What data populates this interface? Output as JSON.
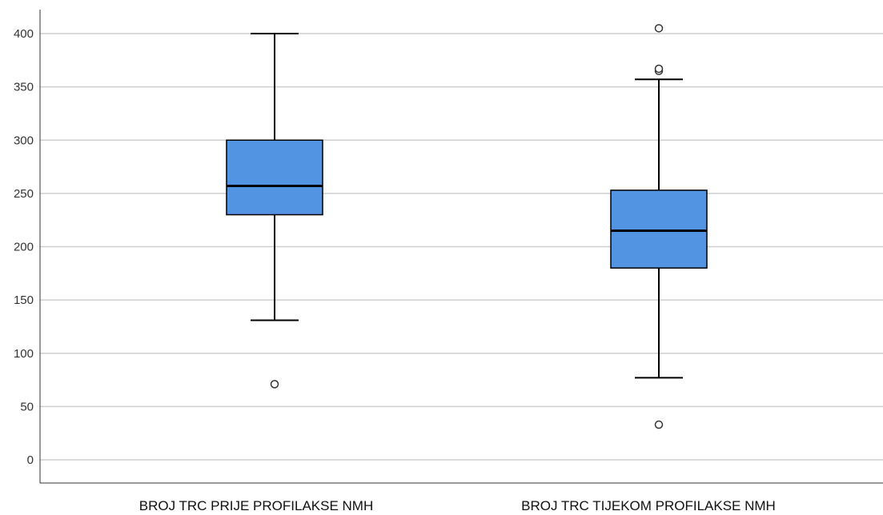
{
  "chart_data": {
    "type": "boxplot",
    "title": "",
    "xlabel": "",
    "ylabel": "",
    "ylim": [
      0,
      400
    ],
    "yticks": [
      0,
      50,
      100,
      150,
      200,
      250,
      300,
      350,
      400
    ],
    "grid": "horizontal",
    "legend": "none",
    "box_color": "#5294e2",
    "categories": [
      "BROJ TRC PRIJE PROFILAKSE NMH",
      "BROJ TRC TIJEKOM PROFILAKSE NMH"
    ],
    "boxes": [
      {
        "category": "BROJ TRC PRIJE PROFILAKSE NMH",
        "whisker_low": 131,
        "q1": 230,
        "median": 257,
        "q3": 300,
        "whisker_high": 400,
        "outliers": [
          71
        ]
      },
      {
        "category": "BROJ TRC TIJEKOM PROFILAKSE NMH",
        "whisker_low": 77,
        "q1": 180,
        "median": 215,
        "q3": 253,
        "whisker_high": 357,
        "outliers": [
          33,
          365,
          367,
          405
        ]
      }
    ]
  }
}
